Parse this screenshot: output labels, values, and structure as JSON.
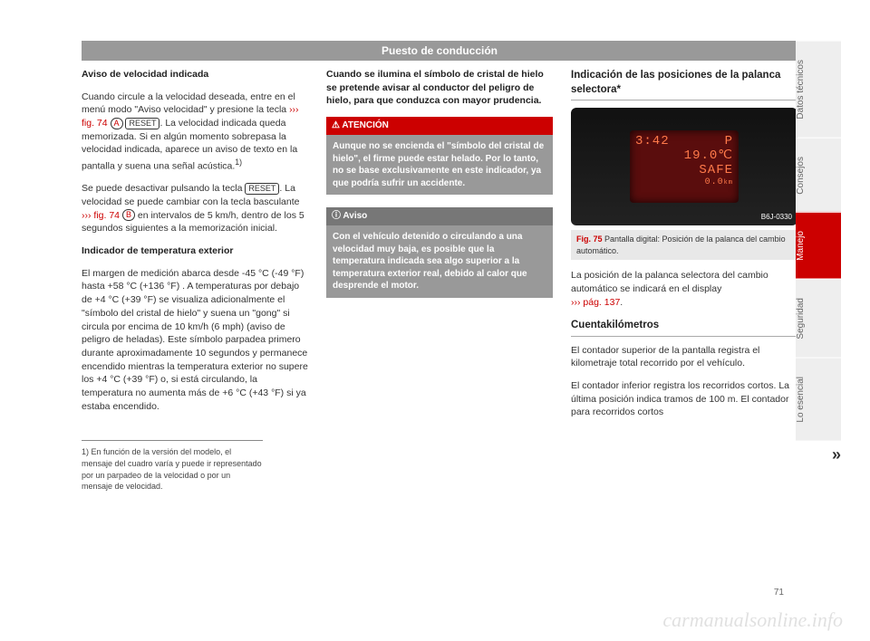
{
  "header": "Puesto de conducción",
  "col1": {
    "h1": "Aviso de velocidad indicada",
    "p1a": "Cuando circule a la velocidad deseada, entre en el menú modo \"Aviso velocidad\" y presione la tecla ",
    "p1_ref": "››› fig. 74",
    "p1_badge": "A",
    "p1_btn": "RESET",
    "p1b": ". La velocidad indicada queda memorizada. Si en algún momento sobrepasa la velocidad indicada, aparece un aviso de texto en la pantalla y suena una señal acústica.",
    "p1_sup": "1)",
    "p2a": "Se puede desactivar pulsando la tecla ",
    "p2_btn": "RESET",
    "p2b": ". La velocidad se puede cambiar con la tecla basculante ",
    "p2_ref": "››› fig. 74",
    "p2_badge": "B",
    "p2c": " en intervalos de 5 km/h, dentro de los 5 segundos siguientes a la memorización inicial.",
    "h2": "Indicador de temperatura exterior",
    "p3": "El margen de medición abarca desde -45 °C (-49 °F) hasta +58 °C (+136 °F) . A temperaturas por debajo de +4 °C (+39 °F) se visualiza adicionalmente el \"símbolo del cristal de hielo\" y suena un \"gong\" si circula por encima de 10 km/h (6 mph) (aviso de peligro de heladas). Este símbolo parpadea primero durante aproximadamente 10 segundos y permanece encendido mientras la temperatura exterior no supere los +4 °C (+39 °F) o, si está circulando, la temperatura no aumenta más de +6 °C (+43 °F) si ya estaba encendido.",
    "footnote": "1)  En función de la versión del modelo, el mensaje del cuadro varía y puede ir representado por un parpadeo de la velocidad o por un mensaje de velocidad."
  },
  "col2": {
    "lead": "Cuando se ilumina el símbolo de cristal de hielo se pretende avisar al conductor del peligro de hielo, para que conduzca con mayor prudencia.",
    "warn_head": "⚠ ATENCIÓN",
    "warn_body": "Aunque no se encienda el \"símbolo del cristal de hielo\", el firme puede estar helado. Por lo tanto, no se base exclusivamente en este indicador, ya que podría sufrir un accidente.",
    "note_head": "ⓘ Aviso",
    "note_body": "Con el vehículo detenido o circulando a una velocidad muy baja, es posible que la temperatura indicada sea algo superior a la temperatura exterior real, debido al calor que desprende el motor."
  },
  "col3": {
    "title1": "Indicación de las posiciones de la palanca selectora*",
    "lcd": {
      "time": "3:42",
      "gear": "P",
      "temp": "19.0℃",
      "safe": "SAFE",
      "odo": "0.0",
      "trip": "km"
    },
    "img_label": "B6J-0330",
    "fig_ref": "Fig. 75",
    "fig_text": "  Pantalla digital: Posición de la palanca del cambio automático.",
    "p1": "La posición de la palanca selectora del cambio automático se indicará en el display",
    "p1_ref": "››› pág. 137",
    "p1_dot": ".",
    "title2": "Cuentakilómetros",
    "p2": "El contador superior de la pantalla registra el kilometraje total recorrido por el vehículo.",
    "p3": "El contador inferior registra los recorridos cortos. La última posición indica tramos de 100 m. El contador para recorridos cortos"
  },
  "tabs": {
    "t1": "Datos técnicos",
    "t2": "Consejos",
    "t3": "Manejo",
    "t4": "Seguridad",
    "t5": "Lo esencial"
  },
  "page_num": "71",
  "continue": "»",
  "watermark": "carmanualsonline.info"
}
